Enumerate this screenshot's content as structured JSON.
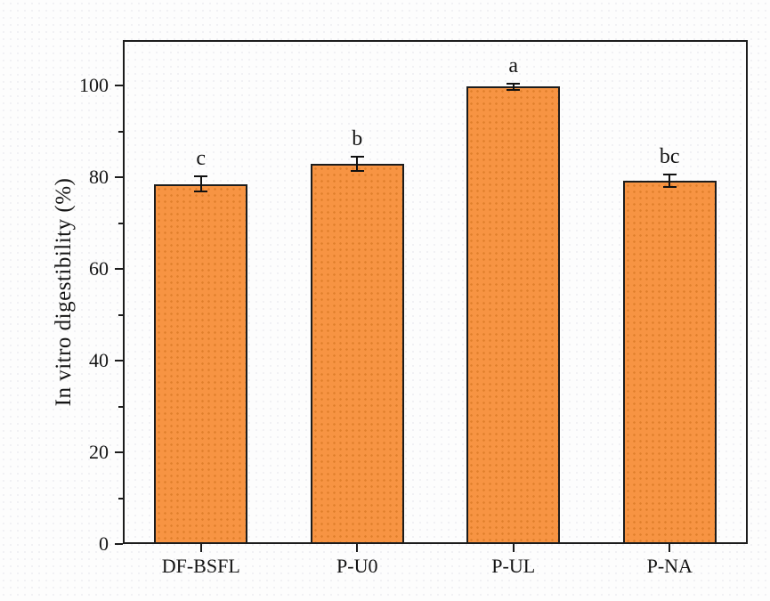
{
  "chart_data": {
    "type": "bar",
    "title": "",
    "xlabel": "",
    "ylabel": "In vitro digestibility (%)",
    "categories": [
      "DF-BSFL",
      "P-U0",
      "P-UL",
      "P-NA"
    ],
    "values": [
      78.6,
      83.0,
      99.8,
      79.3
    ],
    "error_bars": [
      1.6,
      1.6,
      0.7,
      1.4
    ],
    "significance_letters": [
      "c",
      "b",
      "a",
      "bc"
    ],
    "ylim": [
      0,
      110
    ],
    "yticks_major": [
      0,
      20,
      40,
      60,
      80,
      100
    ],
    "yticks_minor": [
      10,
      30,
      50,
      70,
      90
    ],
    "grid": false,
    "legend": null,
    "bar_color": "#F79443",
    "bar_border_color": "#1c1c1c",
    "axis_color": "#1c1c1c"
  }
}
